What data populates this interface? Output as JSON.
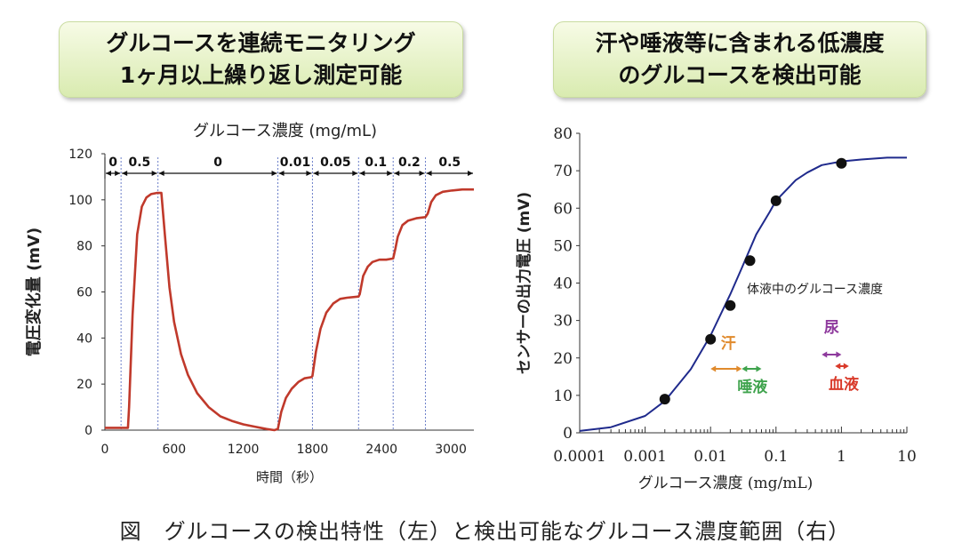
{
  "banners": {
    "left": [
      "グルコースを連続モニタリング",
      "1ヶ月以上繰り返し測定可能"
    ],
    "right": [
      "汗や唾液等に含まれる低濃度",
      "のグルコースを検出可能"
    ]
  },
  "caption": "図　グルコースの検出特性（左）と検出可能なグルコース濃度範囲（右）",
  "chart_data": [
    {
      "type": "line",
      "title": "グルコース濃度 (mg/mL)",
      "xlabel": "時間（秒）",
      "ylabel": "電圧変化量 (mV)",
      "xlim": [
        0,
        3200
      ],
      "ylim": [
        0,
        120
      ],
      "xticks": [
        "0",
        "600",
        "1200",
        "1800",
        "2400",
        "3000"
      ],
      "yticks": [
        "0",
        "20",
        "40",
        "60",
        "80",
        "100",
        "120"
      ],
      "color": "#c0392b",
      "segments": [
        {
          "label": "0",
          "from": 0,
          "to": 140
        },
        {
          "label": "0.5",
          "from": 140,
          "to": 460
        },
        {
          "label": "0",
          "from": 460,
          "to": 1500
        },
        {
          "label": "0.01",
          "from": 1500,
          "to": 1800
        },
        {
          "label": "0.05",
          "from": 1800,
          "to": 2200
        },
        {
          "label": "0.1",
          "from": 2200,
          "to": 2500
        },
        {
          "label": "0.2",
          "from": 2500,
          "to": 2780
        },
        {
          "label": "0.5",
          "from": 2780,
          "to": 3200
        }
      ],
      "series": [
        {
          "x": [
            0,
            200,
            210,
            240,
            280,
            320,
            360,
            400,
            450,
            490,
            520,
            560,
            600,
            660,
            720,
            800,
            900,
            1000,
            1100,
            1200,
            1300,
            1400,
            1470,
            1500,
            1530,
            1570,
            1620,
            1680,
            1730,
            1790,
            1800,
            1830,
            1870,
            1920,
            1980,
            2040,
            2100,
            2200,
            2210,
            2240,
            2280,
            2320,
            2380,
            2440,
            2500,
            2520,
            2540,
            2580,
            2630,
            2700,
            2780,
            2800,
            2830,
            2870,
            2930,
            3000,
            3100,
            3200
          ],
          "y": [
            1,
            1,
            10,
            50,
            85,
            97,
            101,
            102.5,
            103,
            103,
            85,
            62,
            47,
            33,
            24,
            16,
            10,
            6,
            4,
            2.5,
            1.5,
            0.5,
            0,
            0.5,
            8,
            14,
            18,
            21,
            22.5,
            23,
            23.5,
            34,
            44,
            51,
            55,
            57,
            57.5,
            58,
            59,
            67,
            71,
            73,
            74,
            74,
            74.5,
            79,
            84,
            89,
            91,
            92,
            92.5,
            94,
            99,
            102,
            103.5,
            104,
            104.5,
            104.5
          ]
        }
      ]
    },
    {
      "type": "scatter",
      "xscale": "log",
      "xlabel": "グルコース濃度 (mg/mL)",
      "ylabel": "センサーの出力電圧 (mV)",
      "xlim": [
        0.0001,
        10
      ],
      "ylim": [
        0,
        80
      ],
      "xticks": [
        "0.0001",
        "0.001",
        "0.01",
        "0.1",
        "1",
        "10"
      ],
      "yticks": [
        "0",
        "10",
        "20",
        "30",
        "40",
        "50",
        "60",
        "70",
        "80"
      ],
      "points": {
        "x": [
          0.002,
          0.01,
          0.02,
          0.04,
          0.1,
          1
        ],
        "y": [
          9,
          25,
          34,
          46,
          62,
          72
        ]
      },
      "fit": {
        "x": [
          0.0001,
          0.0003,
          0.001,
          0.002,
          0.005,
          0.01,
          0.02,
          0.03,
          0.05,
          0.08,
          0.1,
          0.2,
          0.3,
          0.5,
          1,
          2,
          5,
          10
        ],
        "y": [
          0.5,
          1.5,
          4.5,
          8.5,
          17,
          26,
          37,
          44,
          53,
          59,
          62,
          67.5,
          69.5,
          71.5,
          72.5,
          73,
          73.5,
          73.5
        ]
      },
      "fit_label": "体液中のグルコース濃度",
      "ranges": [
        {
          "label": "汗",
          "from": 0.01,
          "to": 0.03,
          "color": "#e08a2c"
        },
        {
          "label": "唾液",
          "from": 0.03,
          "to": 0.06,
          "color": "#3fa34d"
        },
        {
          "label": "尿",
          "from": 0.5,
          "to": 1.0,
          "color": "#8e3a9d"
        },
        {
          "label": "血液",
          "from": 0.8,
          "to": 1.3,
          "color": "#d93a2a"
        }
      ],
      "line_color": "#1f2a8c",
      "marker_color": "#111111"
    }
  ]
}
